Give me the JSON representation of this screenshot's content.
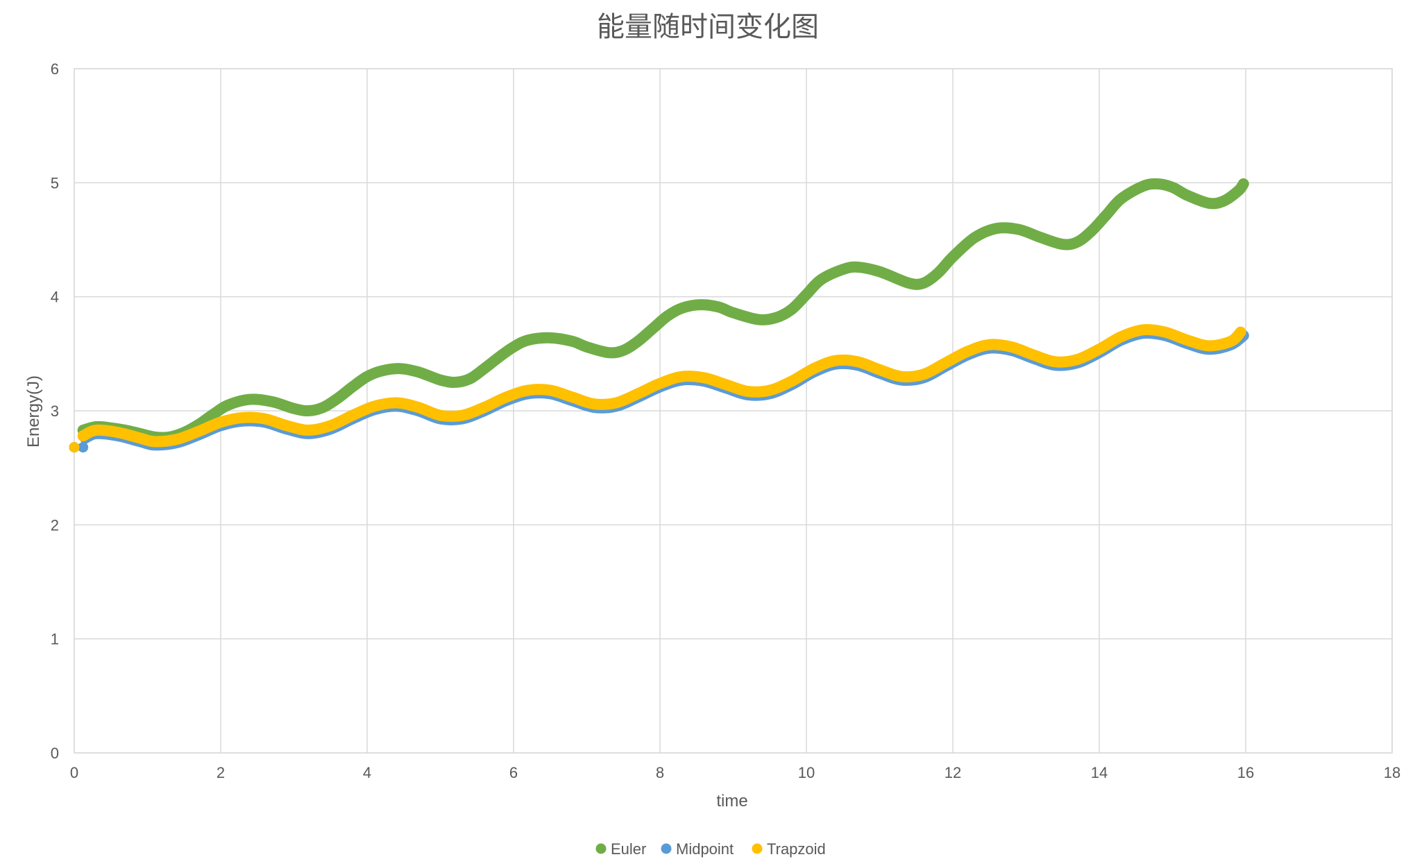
{
  "chart_data": {
    "type": "scatter",
    "title": "能量随时间变化图",
    "xlabel": "time",
    "ylabel": "Energy(J)",
    "xlim": [
      0,
      18
    ],
    "ylim": [
      0,
      6
    ],
    "xticks": [
      0,
      2,
      4,
      6,
      8,
      10,
      12,
      14,
      16,
      18
    ],
    "yticks": [
      0,
      1,
      2,
      3,
      4,
      5,
      6
    ],
    "grid": true,
    "legend_position": "bottom",
    "series": [
      {
        "name": "Euler",
        "color": "#70AD47",
        "x": [
          0,
          0.12,
          0.3,
          0.5,
          0.7,
          0.9,
          1.1,
          1.3,
          1.5,
          1.7,
          1.9,
          2.1,
          2.4,
          2.7,
          3.0,
          3.2,
          3.4,
          3.6,
          3.8,
          4.0,
          4.2,
          4.45,
          4.7,
          5.0,
          5.2,
          5.4,
          5.6,
          5.8,
          6.0,
          6.2,
          6.5,
          6.8,
          7.0,
          7.3,
          7.5,
          7.7,
          7.9,
          8.1,
          8.3,
          8.55,
          8.8,
          9.0,
          9.35,
          9.6,
          9.8,
          10.0,
          10.2,
          10.5,
          10.7,
          11.0,
          11.4,
          11.6,
          11.8,
          12.0,
          12.3,
          12.6,
          12.9,
          13.2,
          13.5,
          13.7,
          13.9,
          14.1,
          14.3,
          14.6,
          14.8,
          15.0,
          15.2,
          15.5,
          15.7,
          15.9,
          15.97
        ],
        "y": [
          2.68,
          2.83,
          2.86,
          2.85,
          2.83,
          2.8,
          2.77,
          2.77,
          2.81,
          2.88,
          2.97,
          3.05,
          3.1,
          3.08,
          3.02,
          3.0,
          3.03,
          3.11,
          3.21,
          3.3,
          3.35,
          3.37,
          3.34,
          3.27,
          3.25,
          3.28,
          3.37,
          3.47,
          3.56,
          3.62,
          3.64,
          3.61,
          3.56,
          3.51,
          3.53,
          3.61,
          3.72,
          3.83,
          3.9,
          3.93,
          3.91,
          3.86,
          3.8,
          3.82,
          3.89,
          4.02,
          4.15,
          4.24,
          4.26,
          4.22,
          4.12,
          4.12,
          4.21,
          4.35,
          4.52,
          4.6,
          4.59,
          4.52,
          4.46,
          4.48,
          4.58,
          4.72,
          4.86,
          4.97,
          4.99,
          4.96,
          4.89,
          4.82,
          4.84,
          4.93,
          4.99
        ]
      },
      {
        "name": "Midpoint",
        "color": "#5B9BD5",
        "x": [
          0,
          0.12,
          0.15,
          0.3,
          0.6,
          0.9,
          1.1,
          1.4,
          1.7,
          2.0,
          2.3,
          2.6,
          2.9,
          3.2,
          3.5,
          3.8,
          4.1,
          4.4,
          4.7,
          5.0,
          5.3,
          5.6,
          5.9,
          6.2,
          6.5,
          6.8,
          7.1,
          7.4,
          7.7,
          8.0,
          8.3,
          8.6,
          8.9,
          9.2,
          9.5,
          9.8,
          10.1,
          10.4,
          10.7,
          11.0,
          11.3,
          11.6,
          11.9,
          12.2,
          12.5,
          12.8,
          13.1,
          13.4,
          13.7,
          14.0,
          14.3,
          14.6,
          14.9,
          15.2,
          15.5,
          15.8,
          15.97
        ],
        "y": [
          2.68,
          2.68,
          2.76,
          2.8,
          2.78,
          2.73,
          2.7,
          2.72,
          2.79,
          2.87,
          2.91,
          2.9,
          2.84,
          2.8,
          2.84,
          2.93,
          3.01,
          3.04,
          3.0,
          2.93,
          2.93,
          3.0,
          3.09,
          3.15,
          3.15,
          3.09,
          3.03,
          3.04,
          3.12,
          3.21,
          3.27,
          3.26,
          3.2,
          3.14,
          3.15,
          3.23,
          3.34,
          3.41,
          3.4,
          3.33,
          3.27,
          3.29,
          3.39,
          3.49,
          3.55,
          3.53,
          3.46,
          3.4,
          3.42,
          3.51,
          3.62,
          3.68,
          3.66,
          3.59,
          3.54,
          3.58,
          3.66
        ]
      },
      {
        "name": "Trapzoid",
        "color": "#FFC000",
        "x": [
          0,
          0.12,
          0.3,
          0.6,
          0.9,
          1.1,
          1.4,
          1.7,
          2.0,
          2.3,
          2.6,
          2.9,
          3.2,
          3.5,
          3.8,
          4.1,
          4.4,
          4.7,
          5.0,
          5.3,
          5.6,
          5.9,
          6.2,
          6.5,
          6.8,
          7.1,
          7.4,
          7.7,
          8.0,
          8.3,
          8.6,
          8.9,
          9.2,
          9.5,
          9.8,
          10.1,
          10.4,
          10.7,
          11.0,
          11.3,
          11.6,
          11.9,
          12.2,
          12.5,
          12.8,
          13.1,
          13.4,
          13.7,
          14.0,
          14.3,
          14.6,
          14.9,
          15.2,
          15.5,
          15.8,
          15.93
        ],
        "y": [
          2.68,
          2.78,
          2.83,
          2.81,
          2.76,
          2.73,
          2.75,
          2.82,
          2.9,
          2.94,
          2.93,
          2.87,
          2.83,
          2.87,
          2.96,
          3.04,
          3.07,
          3.03,
          2.96,
          2.96,
          3.03,
          3.12,
          3.18,
          3.18,
          3.12,
          3.06,
          3.07,
          3.15,
          3.24,
          3.3,
          3.29,
          3.23,
          3.17,
          3.18,
          3.26,
          3.37,
          3.44,
          3.43,
          3.36,
          3.3,
          3.32,
          3.42,
          3.52,
          3.58,
          3.56,
          3.49,
          3.43,
          3.45,
          3.54,
          3.65,
          3.71,
          3.69,
          3.62,
          3.57,
          3.61,
          3.69
        ]
      }
    ]
  }
}
